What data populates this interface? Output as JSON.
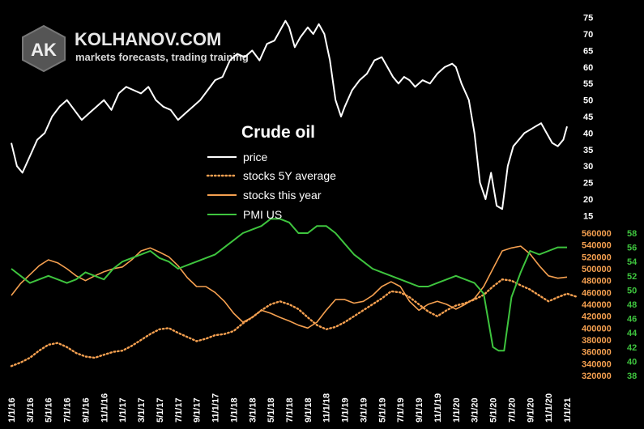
{
  "logo": {
    "initials": "AK",
    "name": "KOLHANOV.COM",
    "tagline": "markets forecasts, trading training"
  },
  "colors": {
    "price": "#ffffff",
    "stocks_avg": "#f5a050",
    "stocks_year": "#f5a050",
    "pmi": "#3ec43e",
    "stock_axis": "#f5a050",
    "pmi_axis": "#3ec43e"
  },
  "chart_data": {
    "type": "line",
    "title": "Crude oil",
    "legend": [
      {
        "label": "price",
        "style": "solid",
        "color": "#ffffff"
      },
      {
        "label": "stocks 5Y average",
        "style": "dotted",
        "color": "#f5a050"
      },
      {
        "label": "stocks this year",
        "style": "solid",
        "color": "#f5a050"
      },
      {
        "label": "PMI US",
        "style": "solid",
        "color": "#3ec43e"
      }
    ],
    "x_ticks": [
      "1/1/16",
      "3/1/16",
      "5/1/16",
      "7/1/16",
      "9/1/16",
      "11/1/16",
      "1/1/17",
      "3/1/17",
      "5/1/17",
      "7/1/17",
      "9/1/17",
      "11/1/17",
      "1/1/18",
      "3/1/18",
      "5/1/18",
      "7/1/18",
      "9/1/18",
      "11/1/18",
      "1/1/19",
      "3/1/19",
      "5/1/19",
      "7/1/19",
      "9/1/19",
      "11/1/19",
      "1/1/20",
      "3/1/20",
      "5/1/20",
      "7/1/20",
      "9/1/20",
      "11/1/20",
      "1/1/21"
    ],
    "price_axis": {
      "ticks": [
        15,
        20,
        25,
        30,
        35,
        40,
        45,
        50,
        55,
        60,
        65,
        70,
        75
      ]
    },
    "stocks_axis": {
      "ticks": [
        320000,
        340000,
        360000,
        380000,
        400000,
        420000,
        440000,
        460000,
        480000,
        500000,
        520000,
        540000,
        560000
      ]
    },
    "pmi_axis": {
      "ticks": [
        38,
        40,
        42,
        44,
        46,
        48,
        50,
        52,
        54,
        56,
        58
      ]
    },
    "series": {
      "price": [
        [
          0,
          37
        ],
        [
          0.3,
          30
        ],
        [
          0.6,
          28
        ],
        [
          1,
          33
        ],
        [
          1.4,
          38
        ],
        [
          1.8,
          40
        ],
        [
          2.2,
          45
        ],
        [
          2.6,
          48
        ],
        [
          3,
          50
        ],
        [
          3.4,
          47
        ],
        [
          3.8,
          44
        ],
        [
          4.2,
          46
        ],
        [
          4.6,
          48
        ],
        [
          5,
          50
        ],
        [
          5.4,
          47
        ],
        [
          5.8,
          52
        ],
        [
          6.2,
          54
        ],
        [
          6.6,
          53
        ],
        [
          7,
          52
        ],
        [
          7.4,
          54
        ],
        [
          7.8,
          50
        ],
        [
          8.2,
          48
        ],
        [
          8.6,
          47
        ],
        [
          9,
          44
        ],
        [
          9.4,
          46
        ],
        [
          9.8,
          48
        ],
        [
          10.2,
          50
        ],
        [
          10.6,
          53
        ],
        [
          11,
          56
        ],
        [
          11.4,
          57
        ],
        [
          11.8,
          62
        ],
        [
          12.2,
          64
        ],
        [
          12.6,
          63
        ],
        [
          13,
          65
        ],
        [
          13.4,
          62
        ],
        [
          13.8,
          67
        ],
        [
          14.2,
          68
        ],
        [
          14.6,
          72
        ],
        [
          14.8,
          74
        ],
        [
          15,
          72
        ],
        [
          15.3,
          66
        ],
        [
          15.6,
          69
        ],
        [
          16,
          72
        ],
        [
          16.3,
          70
        ],
        [
          16.6,
          73
        ],
        [
          16.9,
          70
        ],
        [
          17.2,
          62
        ],
        [
          17.5,
          50
        ],
        [
          17.8,
          45
        ],
        [
          18,
          48
        ],
        [
          18.4,
          53
        ],
        [
          18.8,
          56
        ],
        [
          19.2,
          58
        ],
        [
          19.6,
          62
        ],
        [
          20,
          63
        ],
        [
          20.3,
          60
        ],
        [
          20.6,
          57
        ],
        [
          20.9,
          55
        ],
        [
          21.2,
          57
        ],
        [
          21.5,
          56
        ],
        [
          21.8,
          54
        ],
        [
          22.2,
          56
        ],
        [
          22.6,
          55
        ],
        [
          23,
          58
        ],
        [
          23.4,
          60
        ],
        [
          23.8,
          61
        ],
        [
          24,
          60
        ],
        [
          24.3,
          55
        ],
        [
          24.7,
          50
        ],
        [
          25,
          40
        ],
        [
          25.3,
          25
        ],
        [
          25.6,
          20
        ],
        [
          25.9,
          28
        ],
        [
          26.2,
          18
        ],
        [
          26.5,
          17
        ],
        [
          26.8,
          30
        ],
        [
          27.1,
          36
        ],
        [
          27.4,
          38
        ],
        [
          27.7,
          40
        ],
        [
          28,
          41
        ],
        [
          28.3,
          42
        ],
        [
          28.6,
          43
        ],
        [
          28.9,
          40
        ],
        [
          29.2,
          37
        ],
        [
          29.5,
          36
        ],
        [
          29.8,
          38
        ],
        [
          30,
          42
        ]
      ],
      "stocks_5y_average": [
        [
          0,
          336000
        ],
        [
          0.5,
          342000
        ],
        [
          1,
          350000
        ],
        [
          1.5,
          362000
        ],
        [
          2,
          372000
        ],
        [
          2.5,
          375000
        ],
        [
          3,
          368000
        ],
        [
          3.5,
          358000
        ],
        [
          4,
          352000
        ],
        [
          4.5,
          350000
        ],
        [
          5,
          355000
        ],
        [
          5.5,
          360000
        ],
        [
          6,
          362000
        ],
        [
          6.5,
          370000
        ],
        [
          7,
          380000
        ],
        [
          7.5,
          390000
        ],
        [
          8,
          398000
        ],
        [
          8.5,
          400000
        ],
        [
          9,
          392000
        ],
        [
          9.5,
          385000
        ],
        [
          10,
          378000
        ],
        [
          10.5,
          382000
        ],
        [
          11,
          388000
        ],
        [
          11.5,
          390000
        ],
        [
          12,
          395000
        ],
        [
          12.5,
          408000
        ],
        [
          13,
          418000
        ],
        [
          13.5,
          430000
        ],
        [
          14,
          440000
        ],
        [
          14.5,
          445000
        ],
        [
          15,
          440000
        ],
        [
          15.5,
          432000
        ],
        [
          16,
          418000
        ],
        [
          16.5,
          405000
        ],
        [
          17,
          398000
        ],
        [
          17.5,
          402000
        ],
        [
          18,
          410000
        ],
        [
          18.5,
          420000
        ],
        [
          19,
          430000
        ],
        [
          19.5,
          440000
        ],
        [
          20,
          450000
        ],
        [
          20.5,
          462000
        ],
        [
          21,
          460000
        ],
        [
          21.5,
          452000
        ],
        [
          22,
          440000
        ],
        [
          22.5,
          428000
        ],
        [
          23,
          420000
        ],
        [
          23.5,
          430000
        ],
        [
          24,
          438000
        ],
        [
          24.5,
          442000
        ],
        [
          25,
          448000
        ],
        [
          25.5,
          456000
        ],
        [
          26,
          470000
        ],
        [
          26.5,
          482000
        ],
        [
          27,
          480000
        ],
        [
          27.5,
          472000
        ],
        [
          28,
          465000
        ],
        [
          28.5,
          455000
        ],
        [
          29,
          445000
        ],
        [
          29.5,
          452000
        ],
        [
          30,
          458000
        ],
        [
          30.5,
          453000
        ]
      ],
      "stocks_this_year": [
        [
          0,
          455000
        ],
        [
          0.5,
          475000
        ],
        [
          1,
          490000
        ],
        [
          1.5,
          505000
        ],
        [
          2,
          515000
        ],
        [
          2.5,
          510000
        ],
        [
          3,
          500000
        ],
        [
          3.5,
          488000
        ],
        [
          4,
          480000
        ],
        [
          4.5,
          488000
        ],
        [
          5,
          495000
        ],
        [
          5.5,
          500000
        ],
        [
          6,
          503000
        ],
        [
          6.5,
          515000
        ],
        [
          7,
          530000
        ],
        [
          7.5,
          535000
        ],
        [
          8,
          528000
        ],
        [
          8.5,
          520000
        ],
        [
          9,
          505000
        ],
        [
          9.5,
          485000
        ],
        [
          10,
          470000
        ],
        [
          10.5,
          470000
        ],
        [
          11,
          460000
        ],
        [
          11.5,
          445000
        ],
        [
          12,
          425000
        ],
        [
          12.5,
          410000
        ],
        [
          13,
          418000
        ],
        [
          13.5,
          430000
        ],
        [
          14,
          425000
        ],
        [
          14.5,
          418000
        ],
        [
          15,
          412000
        ],
        [
          15.5,
          405000
        ],
        [
          16,
          400000
        ],
        [
          16.5,
          410000
        ],
        [
          17,
          430000
        ],
        [
          17.5,
          448000
        ],
        [
          18,
          448000
        ],
        [
          18.5,
          442000
        ],
        [
          19,
          445000
        ],
        [
          19.5,
          455000
        ],
        [
          20,
          470000
        ],
        [
          20.5,
          478000
        ],
        [
          21,
          470000
        ],
        [
          21.5,
          445000
        ],
        [
          22,
          430000
        ],
        [
          22.5,
          440000
        ],
        [
          23,
          445000
        ],
        [
          23.5,
          440000
        ],
        [
          24,
          432000
        ],
        [
          24.5,
          440000
        ],
        [
          25,
          450000
        ],
        [
          25.5,
          470000
        ],
        [
          26,
          500000
        ],
        [
          26.5,
          530000
        ],
        [
          27,
          535000
        ],
        [
          27.5,
          538000
        ],
        [
          28,
          525000
        ],
        [
          28.5,
          505000
        ],
        [
          29,
          488000
        ],
        [
          29.5,
          484000
        ],
        [
          30,
          486000
        ]
      ],
      "pmi_us": [
        [
          0,
          53
        ],
        [
          0.5,
          52
        ],
        [
          1,
          51
        ],
        [
          1.5,
          51.5
        ],
        [
          2,
          52
        ],
        [
          2.5,
          51.5
        ],
        [
          3,
          51
        ],
        [
          3.5,
          51.5
        ],
        [
          4,
          52.5
        ],
        [
          4.5,
          52
        ],
        [
          5,
          51.5
        ],
        [
          5.5,
          53
        ],
        [
          6,
          54
        ],
        [
          6.5,
          54.5
        ],
        [
          7,
          55
        ],
        [
          7.5,
          55.5
        ],
        [
          8,
          54.5
        ],
        [
          8.5,
          54
        ],
        [
          9,
          53
        ],
        [
          9.5,
          53.5
        ],
        [
          10,
          54
        ],
        [
          10.5,
          54.5
        ],
        [
          11,
          55
        ],
        [
          11.5,
          56
        ],
        [
          12,
          57
        ],
        [
          12.5,
          58
        ],
        [
          13,
          58.5
        ],
        [
          13.5,
          59
        ],
        [
          14,
          60
        ],
        [
          14.5,
          60
        ],
        [
          15,
          59.5
        ],
        [
          15.5,
          58
        ],
        [
          16,
          58
        ],
        [
          16.5,
          59
        ],
        [
          17,
          59
        ],
        [
          17.5,
          58
        ],
        [
          18,
          56.5
        ],
        [
          18.5,
          55
        ],
        [
          19,
          54
        ],
        [
          19.5,
          53
        ],
        [
          20,
          52.5
        ],
        [
          20.5,
          52
        ],
        [
          21,
          51.5
        ],
        [
          21.5,
          51
        ],
        [
          22,
          50.5
        ],
        [
          22.5,
          50.5
        ],
        [
          23,
          51
        ],
        [
          23.5,
          51.5
        ],
        [
          24,
          52
        ],
        [
          24.5,
          51.5
        ],
        [
          25,
          51
        ],
        [
          25.5,
          49.5
        ],
        [
          26,
          42
        ],
        [
          26.3,
          41.5
        ],
        [
          26.6,
          41.5
        ],
        [
          27,
          49
        ],
        [
          27.5,
          52.5
        ],
        [
          28,
          55.5
        ],
        [
          28.5,
          55
        ],
        [
          29,
          55.5
        ],
        [
          29.5,
          56
        ],
        [
          30,
          56
        ]
      ]
    }
  }
}
